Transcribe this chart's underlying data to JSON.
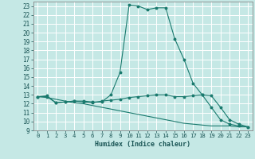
{
  "title": "",
  "xlabel": "Humidex (Indice chaleur)",
  "xlim": [
    -0.5,
    23.5
  ],
  "ylim": [
    9,
    23.5
  ],
  "yticks": [
    9,
    10,
    11,
    12,
    13,
    14,
    15,
    16,
    17,
    18,
    19,
    20,
    21,
    22,
    23
  ],
  "xticks": [
    0,
    1,
    2,
    3,
    4,
    5,
    6,
    7,
    8,
    9,
    10,
    11,
    12,
    13,
    14,
    15,
    16,
    17,
    18,
    19,
    20,
    21,
    22,
    23
  ],
  "bg_color": "#c5e8e5",
  "line_color": "#1a7a6e",
  "grid_color": "#ffffff",
  "lines": [
    {
      "x": [
        0,
        1,
        2,
        3,
        4,
        5,
        6,
        7,
        8,
        9,
        10,
        11,
        12,
        13,
        14,
        15,
        16,
        17,
        18,
        19,
        20,
        21,
        22,
        23
      ],
      "y": [
        12.8,
        12.9,
        12.1,
        12.2,
        12.3,
        12.3,
        12.2,
        12.2,
        13.0,
        15.5,
        23.1,
        23.0,
        22.6,
        22.8,
        22.8,
        19.3,
        17.0,
        14.3,
        13.0,
        11.6,
        10.2,
        9.7,
        9.5,
        9.4
      ],
      "has_markers": true
    },
    {
      "x": [
        0,
        1,
        2,
        3,
        4,
        5,
        6,
        7,
        8,
        9,
        10,
        11,
        12,
        13,
        14,
        15,
        16,
        17,
        18,
        19,
        20,
        21,
        22,
        23
      ],
      "y": [
        12.8,
        12.8,
        12.1,
        12.2,
        12.3,
        12.2,
        12.1,
        12.3,
        12.4,
        12.5,
        12.7,
        12.8,
        12.9,
        13.0,
        13.0,
        12.8,
        12.8,
        12.9,
        13.0,
        12.9,
        11.6,
        10.2,
        9.7,
        9.4
      ],
      "has_markers": true
    },
    {
      "x": [
        0,
        1,
        2,
        3,
        4,
        5,
        6,
        7,
        8,
        9,
        10,
        11,
        12,
        13,
        14,
        15,
        16,
        17,
        18,
        19,
        20,
        21,
        22,
        23
      ],
      "y": [
        12.8,
        12.7,
        12.5,
        12.3,
        12.1,
        12.0,
        11.8,
        11.6,
        11.4,
        11.2,
        11.0,
        10.8,
        10.6,
        10.4,
        10.2,
        10.0,
        9.8,
        9.7,
        9.6,
        9.5,
        9.5,
        9.5,
        9.4,
        9.4
      ],
      "has_markers": false
    }
  ]
}
